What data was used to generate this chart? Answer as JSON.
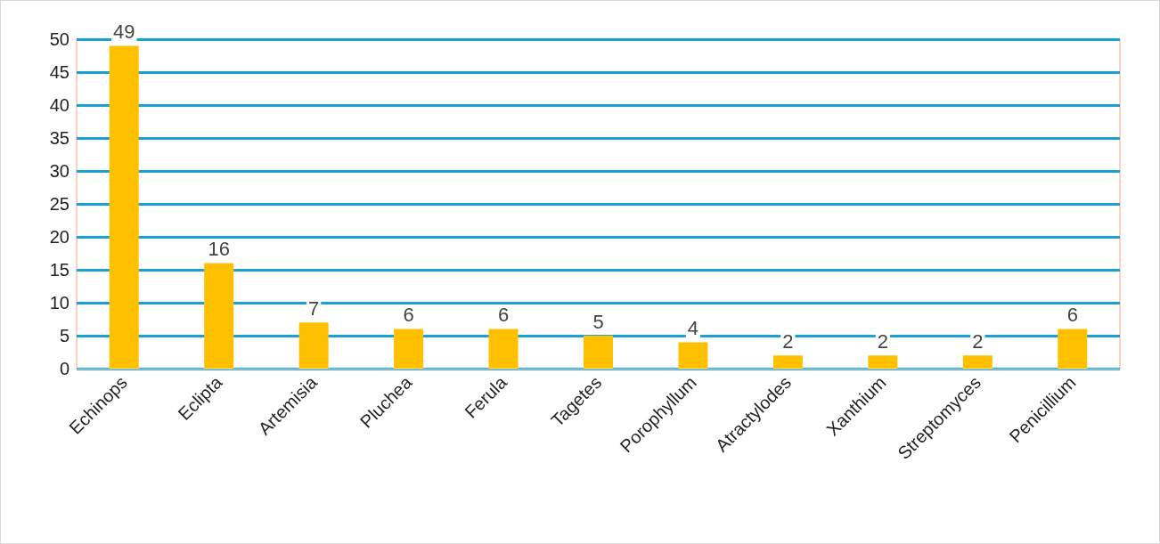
{
  "chart_data": {
    "type": "bar",
    "categories": [
      "Echinops",
      "Eclipta",
      "Artemisia",
      "Pluchea",
      "Ferula",
      "Tagetes",
      "Porophyllum",
      "Atractylodes",
      "Xanthium",
      "Streptomyces",
      "Penicillium"
    ],
    "values": [
      49,
      16,
      7,
      6,
      6,
      5,
      4,
      2,
      2,
      2,
      6
    ],
    "color": "#ffc000",
    "ylim": [
      0,
      50
    ],
    "yticks": [
      0,
      5,
      10,
      15,
      20,
      25,
      30,
      35,
      40,
      45,
      50
    ],
    "grid": "y",
    "data_labels": true
  }
}
